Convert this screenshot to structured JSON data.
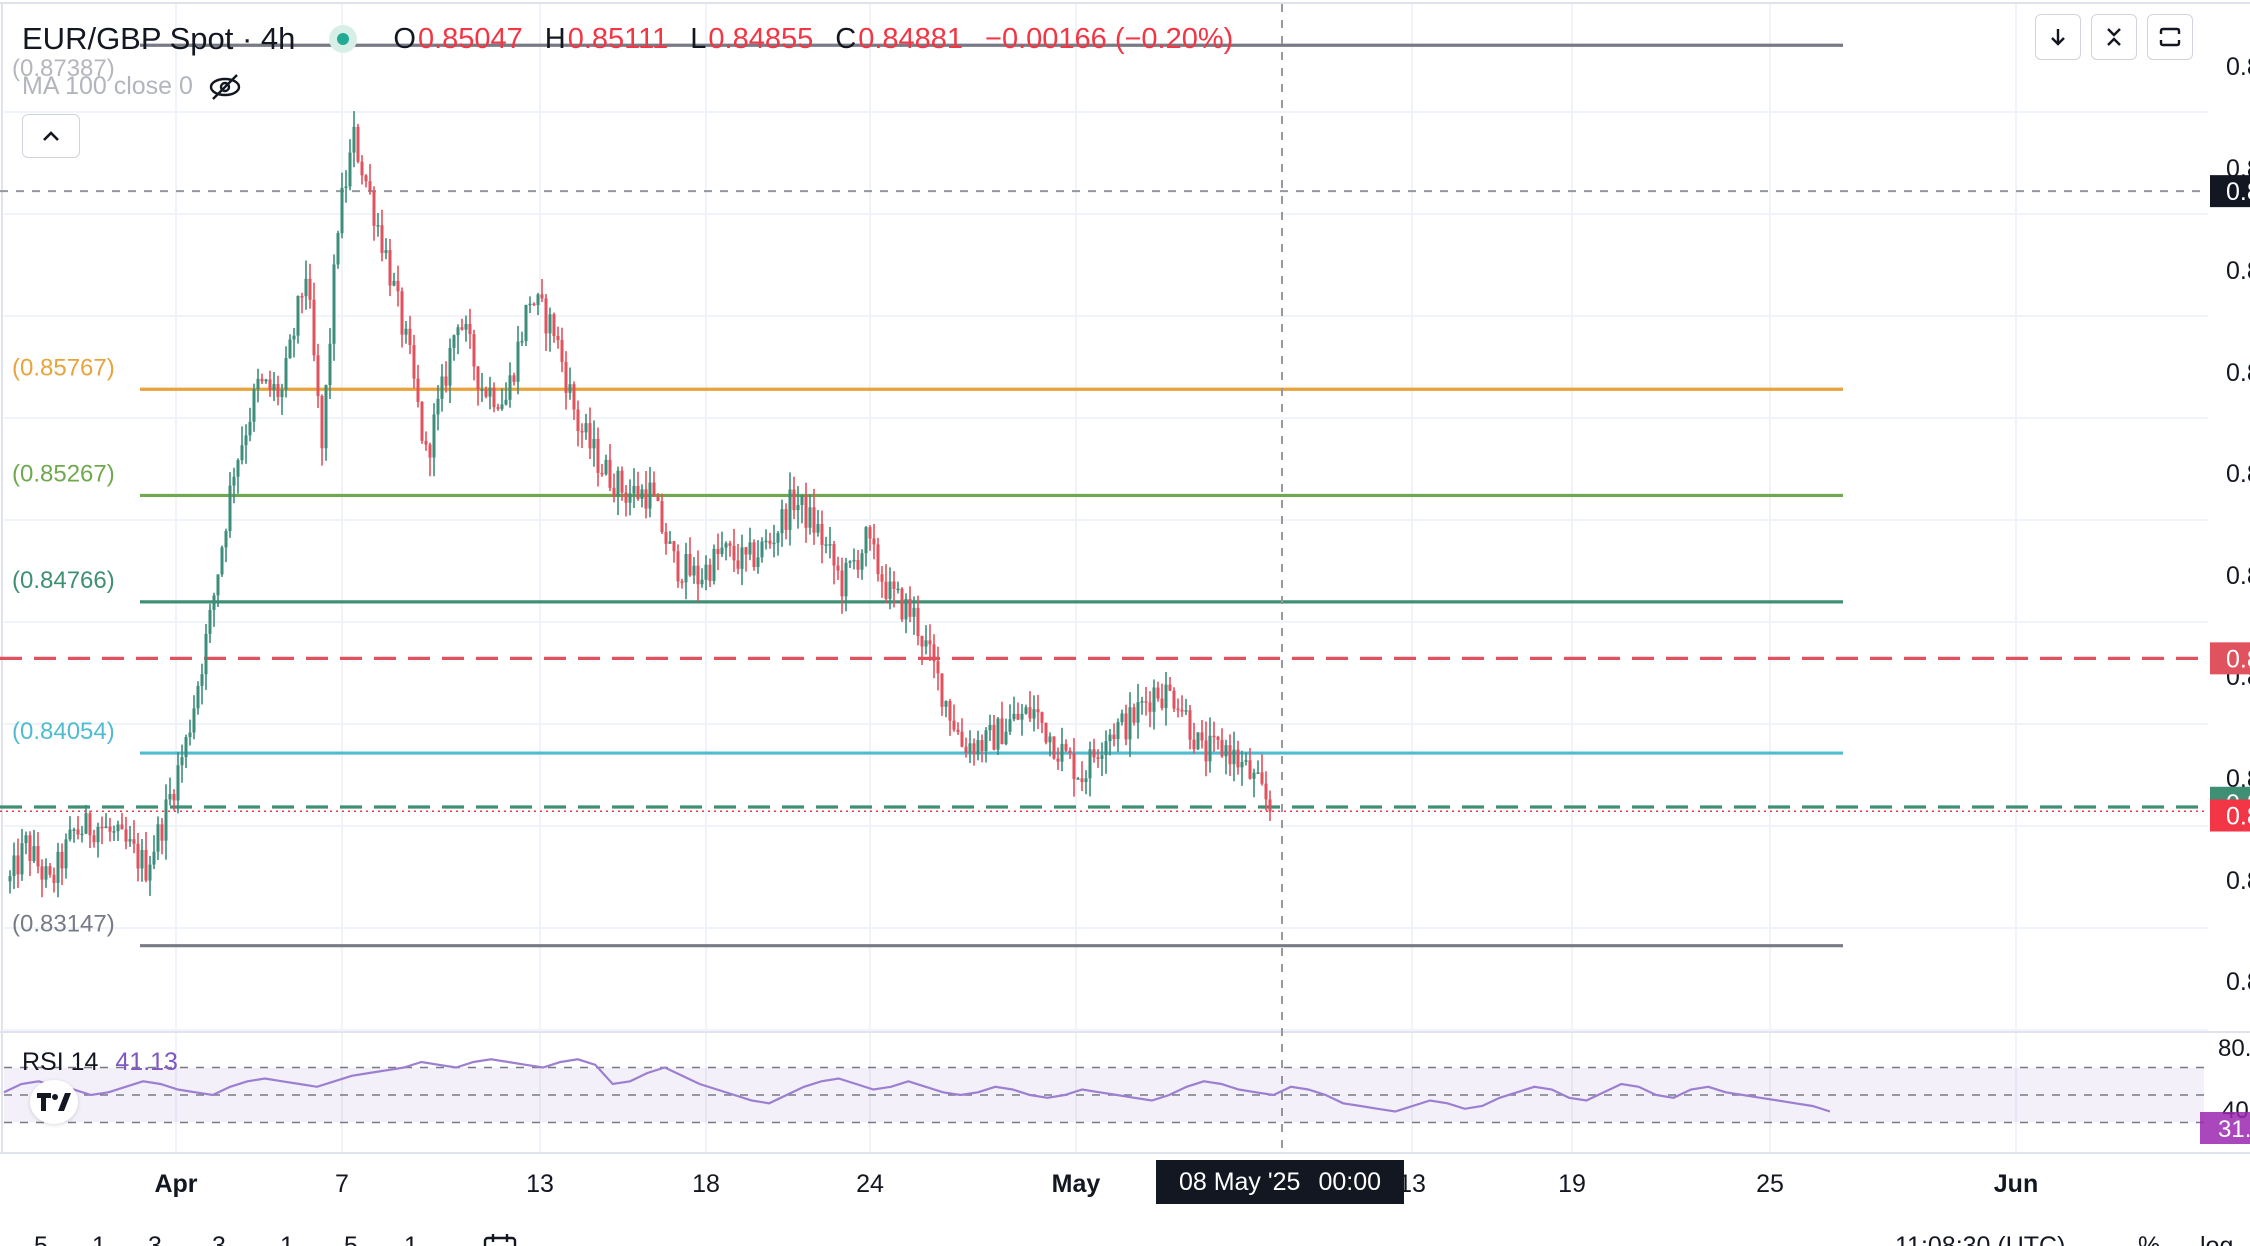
{
  "header": {
    "symbol": "EUR/GBP Spot · 4h",
    "open_label": "O",
    "open": "0.85047",
    "high_label": "H",
    "high": "0.85111",
    "low_label": "L",
    "low": "0.84855",
    "close_label": "C",
    "close": "0.84881",
    "change": "−0.00166 (−0.20%)"
  },
  "ma_legend": {
    "label": "MA 100 close 0",
    "value_tag": "(0.87387)"
  },
  "toolbar": {
    "icons": [
      "arrow-down-icon",
      "expand-icon",
      "fullscreen-icon"
    ]
  },
  "rsi": {
    "name": "RSI 14",
    "value": "41.13",
    "axis_top": "80.",
    "axis_mid": "40",
    "current_tag": "31."
  },
  "crosshair": {
    "date": "08 May '25",
    "time": "00:00"
  },
  "bottom_bar": {
    "timeframes": [
      "5",
      "1",
      "3",
      "3",
      "1",
      "5",
      "1"
    ],
    "clock": "11:08:30 (UTC)",
    "percent": "%",
    "log": "log"
  },
  "colors": {
    "bull": "#3c8d7a",
    "bear": "#e0525e",
    "fib_top": "#787b86",
    "fib_0382": "#e8a33d",
    "fib_05": "#6fa84f",
    "fib_0618": "#3f8f74",
    "fib_0786": "#4fbcd1",
    "fib_bottom": "#787b86",
    "resistance": "#e0525e",
    "support": "#3f8f74",
    "rsi": "#9c7fd0"
  },
  "chart_data": {
    "type": "candlestick",
    "title": "EUR/GBP Spot · 4h",
    "x_tick_labels": [
      "Apr",
      "7",
      "13",
      "18",
      "24",
      "May",
      "13",
      "19",
      "25",
      "Jun"
    ],
    "y_axis_labels": [
      "0.8",
      "0.8",
      "0.8",
      "0.8",
      "0.8",
      "0.8",
      "0.8",
      "0.8",
      "0.8",
      "0.8",
      "0.8"
    ],
    "ylim": [
      0.8275,
      0.876
    ],
    "grid": true,
    "fib_levels": [
      {
        "label": "(0.87387)",
        "value": 0.87387
      },
      {
        "label": "(0.85767)",
        "value": 0.85767
      },
      {
        "label": "(0.85267)",
        "value": 0.85267
      },
      {
        "label": "(0.84766)",
        "value": 0.84766
      },
      {
        "label": "(0.84054)",
        "value": 0.84054
      },
      {
        "label": "(0.83147)",
        "value": 0.83147
      }
    ],
    "horizontal_lines": [
      {
        "name": "resistance",
        "value": 0.845,
        "style": "dashed"
      },
      {
        "name": "support",
        "value": 0.838,
        "style": "dashed"
      },
      {
        "name": "crosshair-price",
        "value": 0.867,
        "style": "dashed"
      },
      {
        "name": "last-price",
        "value": 0.8378,
        "style": "dotted"
      }
    ],
    "price_tags": [
      {
        "name": "crosshair-price-tag",
        "text": "0.8",
        "value": 0.867
      },
      {
        "name": "resistance-tag",
        "text": "0.8",
        "value": 0.845
      },
      {
        "name": "support-tag",
        "text": "0.8",
        "value": 0.8382
      },
      {
        "name": "last-price-tag",
        "text": "0.8",
        "value": 0.8376
      }
    ],
    "anchors": [
      {
        "i": 0,
        "v": 0.8345
      },
      {
        "i": 4,
        "v": 0.8362
      },
      {
        "i": 10,
        "v": 0.8343
      },
      {
        "i": 16,
        "v": 0.8368
      },
      {
        "i": 22,
        "v": 0.8372
      },
      {
        "i": 30,
        "v": 0.836
      },
      {
        "i": 34,
        "v": 0.8352
      },
      {
        "i": 38,
        "v": 0.8372
      },
      {
        "i": 44,
        "v": 0.841
      },
      {
        "i": 50,
        "v": 0.8468
      },
      {
        "i": 56,
        "v": 0.854
      },
      {
        "i": 62,
        "v": 0.8578
      },
      {
        "i": 68,
        "v": 0.8575
      },
      {
        "i": 74,
        "v": 0.8632
      },
      {
        "i": 78,
        "v": 0.8548
      },
      {
        "i": 82,
        "v": 0.8655
      },
      {
        "i": 86,
        "v": 0.8695
      },
      {
        "i": 90,
        "v": 0.8668
      },
      {
        "i": 94,
        "v": 0.864
      },
      {
        "i": 100,
        "v": 0.859
      },
      {
        "i": 104,
        "v": 0.8545
      },
      {
        "i": 108,
        "v": 0.8575
      },
      {
        "i": 112,
        "v": 0.8612
      },
      {
        "i": 118,
        "v": 0.8578
      },
      {
        "i": 124,
        "v": 0.8572
      },
      {
        "i": 130,
        "v": 0.862
      },
      {
        "i": 136,
        "v": 0.8605
      },
      {
        "i": 142,
        "v": 0.856
      },
      {
        "i": 148,
        "v": 0.854
      },
      {
        "i": 154,
        "v": 0.8528
      },
      {
        "i": 160,
        "v": 0.8528
      },
      {
        "i": 166,
        "v": 0.8495
      },
      {
        "i": 172,
        "v": 0.8488
      },
      {
        "i": 178,
        "v": 0.85
      },
      {
        "i": 184,
        "v": 0.8495
      },
      {
        "i": 190,
        "v": 0.8505
      },
      {
        "i": 196,
        "v": 0.8525
      },
      {
        "i": 202,
        "v": 0.851
      },
      {
        "i": 208,
        "v": 0.8485
      },
      {
        "i": 214,
        "v": 0.8505
      },
      {
        "i": 220,
        "v": 0.848
      },
      {
        "i": 226,
        "v": 0.847
      },
      {
        "i": 232,
        "v": 0.844
      },
      {
        "i": 238,
        "v": 0.841
      },
      {
        "i": 244,
        "v": 0.841
      },
      {
        "i": 250,
        "v": 0.842
      },
      {
        "i": 256,
        "v": 0.8425
      },
      {
        "i": 262,
        "v": 0.8408
      },
      {
        "i": 268,
        "v": 0.8395
      },
      {
        "i": 274,
        "v": 0.8415
      },
      {
        "i": 280,
        "v": 0.842
      },
      {
        "i": 286,
        "v": 0.8435
      },
      {
        "i": 292,
        "v": 0.8432
      },
      {
        "i": 298,
        "v": 0.8405
      },
      {
        "i": 304,
        "v": 0.8408
      },
      {
        "i": 310,
        "v": 0.8395
      },
      {
        "i": 315,
        "v": 0.838
      }
    ],
    "rsi_values": [
      52,
      58,
      60,
      56,
      54,
      50,
      52,
      56,
      60,
      58,
      54,
      52,
      50,
      56,
      60,
      62,
      60,
      58,
      56,
      60,
      64,
      66,
      68,
      70,
      74,
      72,
      70,
      74,
      76,
      74,
      72,
      70,
      74,
      76,
      72,
      58,
      60,
      66,
      70,
      64,
      58,
      54,
      50,
      46,
      44,
      50,
      56,
      60,
      62,
      58,
      54,
      56,
      60,
      56,
      52,
      50,
      52,
      56,
      54,
      50,
      48,
      50,
      54,
      52,
      50,
      48,
      46,
      50,
      56,
      60,
      58,
      54,
      52,
      50,
      56,
      54,
      50,
      44,
      42,
      40,
      38,
      42,
      46,
      44,
      40,
      42,
      48,
      52,
      56,
      54,
      48,
      46,
      52,
      58,
      56,
      50,
      48,
      54,
      56,
      52,
      50,
      48,
      46,
      44,
      42,
      38
    ],
    "rsi_levels": {
      "upper": 70,
      "middle": 50,
      "lower": 30
    }
  }
}
